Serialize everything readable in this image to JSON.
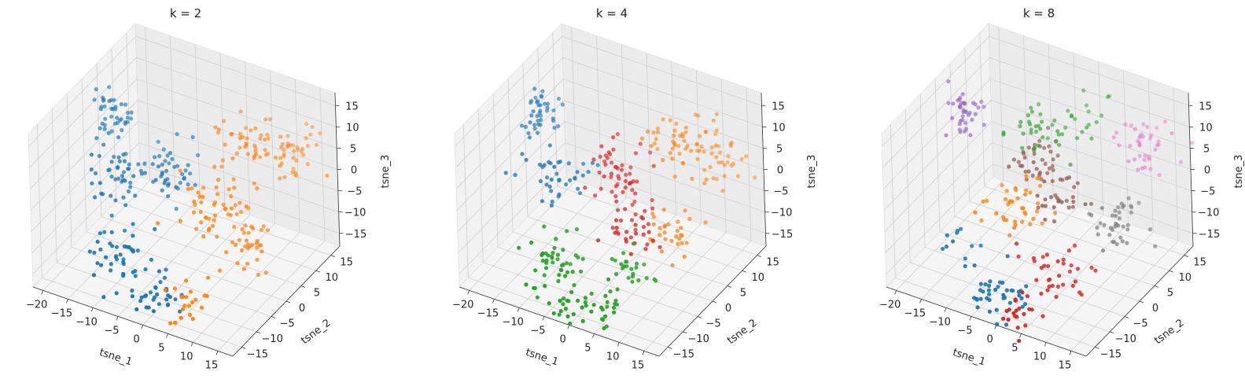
{
  "chart_data": [
    {
      "type": "scatter",
      "title": "k = 2",
      "xlabel": "tsne_1",
      "ylabel": "tsne_2",
      "zlabel": "tsne_3",
      "xticks": [
        "−20",
        "−15",
        "−10",
        "−5",
        "0",
        "5",
        "10",
        "15"
      ],
      "yticks": [
        "−15",
        "−10",
        "−5",
        "0",
        "5",
        "10",
        "15"
      ],
      "zticks": [
        "−15",
        "−10",
        "−5",
        "0",
        "5",
        "10",
        "15"
      ],
      "xlim": [
        -22,
        18
      ],
      "ylim": [
        -18,
        18
      ],
      "zlim": [
        -18,
        18
      ],
      "grid": true,
      "series": [
        {
          "color": "#1f77b4",
          "clusters": [
            {
              "c": [
                -19,
                5,
                8
              ],
              "s": [
                1.8,
                1.8,
                2.5
              ],
              "n": 40
            },
            {
              "c": [
                -14,
                -3,
                0
              ],
              "s": [
                2.5,
                2.5,
                3
              ],
              "n": 45
            },
            {
              "c": [
                -6,
                2,
                2
              ],
              "s": [
                3,
                3,
                3
              ],
              "n": 45
            },
            {
              "c": [
                -7,
                -12,
                -9
              ],
              "s": [
                3,
                2,
                2.5
              ],
              "n": 40
            },
            {
              "c": [
                0,
                -14,
                -14
              ],
              "s": [
                3,
                2,
                2
              ],
              "n": 35
            }
          ]
        },
        {
          "color": "#ff7f0e",
          "clusters": [
            {
              "c": [
                6,
                8,
                9
              ],
              "s": [
                3,
                2.5,
                2.5
              ],
              "n": 40
            },
            {
              "c": [
                12,
                12,
                6
              ],
              "s": [
                2.5,
                2.5,
                3
              ],
              "n": 40
            },
            {
              "c": [
                4,
                0,
                0
              ],
              "s": [
                3,
                3,
                3
              ],
              "n": 45
            },
            {
              "c": [
                10,
                0,
                -7
              ],
              "s": [
                2.5,
                2.5,
                2.5
              ],
              "n": 40
            },
            {
              "c": [
                5,
                -13,
                -14
              ],
              "s": [
                2,
                2,
                1.8
              ],
              "n": 20
            }
          ]
        }
      ]
    },
    {
      "type": "scatter",
      "title": "k = 4",
      "xlabel": "tsne_1",
      "ylabel": "tsne_2",
      "zlabel": "tsne_3",
      "xticks": [
        "−20",
        "−15",
        "−10",
        "−5",
        "0",
        "5",
        "10",
        "15"
      ],
      "yticks": [
        "−15",
        "−10",
        "−5",
        "0",
        "5",
        "10",
        "15"
      ],
      "zticks": [
        "−15",
        "−10",
        "−5",
        "0",
        "5",
        "10",
        "15"
      ],
      "xlim": [
        -22,
        18
      ],
      "ylim": [
        -18,
        18
      ],
      "zlim": [
        -18,
        18
      ],
      "grid": true,
      "series": [
        {
          "color": "#1f77b4",
          "clusters": [
            {
              "c": [
                -19,
                5,
                8
              ],
              "s": [
                1.8,
                1.8,
                2.5
              ],
              "n": 40
            },
            {
              "c": [
                -12,
                -2,
                1
              ],
              "s": [
                2.5,
                2.5,
                3
              ],
              "n": 40
            }
          ]
        },
        {
          "color": "#ff7f0e",
          "clusters": [
            {
              "c": [
                6,
                8,
                9
              ],
              "s": [
                3,
                2.5,
                2.5
              ],
              "n": 40
            },
            {
              "c": [
                12,
                12,
                6
              ],
              "s": [
                2.5,
                2.5,
                3
              ],
              "n": 40
            },
            {
              "c": [
                10,
                0,
                -5
              ],
              "s": [
                2.5,
                2.5,
                2.5
              ],
              "n": 30
            }
          ]
        },
        {
          "color": "#2ca02c",
          "clusters": [
            {
              "c": [
                -6,
                -12,
                -10
              ],
              "s": [
                3,
                2.5,
                2.5
              ],
              "n": 45
            },
            {
              "c": [
                2,
                -15,
                -15
              ],
              "s": [
                3,
                2,
                2
              ],
              "n": 40
            },
            {
              "c": [
                6,
                -8,
                -10
              ],
              "s": [
                2.5,
                2,
                2
              ],
              "n": 25
            }
          ]
        },
        {
          "color": "#d62728",
          "clusters": [
            {
              "c": [
                -2,
                2,
                2
              ],
              "s": [
                3,
                3,
                3
              ],
              "n": 55
            },
            {
              "c": [
                4,
                -4,
                -4
              ],
              "s": [
                2.5,
                2.5,
                2.5
              ],
              "n": 30
            }
          ]
        }
      ]
    },
    {
      "type": "scatter",
      "title": "k = 8",
      "xlabel": "tsne_1",
      "ylabel": "tsne_2",
      "zlabel": "tsne_3",
      "xticks": [
        "−20",
        "−15",
        "−10",
        "−5",
        "0",
        "5",
        "10",
        "15"
      ],
      "yticks": [
        "−15",
        "−10",
        "−5",
        "0",
        "5",
        "10",
        "15"
      ],
      "zticks": [
        "−15",
        "−10",
        "−5",
        "0",
        "5",
        "10",
        "15"
      ],
      "xlim": [
        -22,
        18
      ],
      "ylim": [
        -18,
        18
      ],
      "zlim": [
        -18,
        18
      ],
      "grid": true,
      "series": [
        {
          "color": "#9467bd",
          "clusters": [
            {
              "c": [
                -19,
                5,
                8
              ],
              "s": [
                1.8,
                1.8,
                2.5
              ],
              "n": 40
            }
          ]
        },
        {
          "color": "#2ca02c",
          "clusters": [
            {
              "c": [
                -5,
                6,
                9
              ],
              "s": [
                3,
                2.5,
                2.5
              ],
              "n": 35
            },
            {
              "c": [
                2,
                10,
                11
              ],
              "s": [
                2,
                2,
                2
              ],
              "n": 15
            }
          ]
        },
        {
          "color": "#8c564b",
          "clusters": [
            {
              "c": [
                -4,
                3,
                4
              ],
              "s": [
                2.5,
                2.5,
                2.5
              ],
              "n": 35
            },
            {
              "c": [
                2,
                0,
                0
              ],
              "s": [
                2.5,
                2.5,
                2.5
              ],
              "n": 30
            }
          ]
        },
        {
          "color": "#e377c2",
          "clusters": [
            {
              "c": [
                12,
                12,
                7
              ],
              "s": [
                2.5,
                2.5,
                3
              ],
              "n": 40
            }
          ]
        },
        {
          "color": "#7f7f7f",
          "clusters": [
            {
              "c": [
                12,
                2,
                -2
              ],
              "s": [
                2.5,
                2.5,
                2.5
              ],
              "n": 40
            }
          ]
        },
        {
          "color": "#ff7f0e",
          "clusters": [
            {
              "c": [
                -4,
                -2,
                -2
              ],
              "s": [
                3,
                2.5,
                2.5
              ],
              "n": 40
            }
          ]
        },
        {
          "color": "#d62728",
          "clusters": [
            {
              "c": [
                6,
                -8,
                -10
              ],
              "s": [
                3,
                2.5,
                2.5
              ],
              "n": 35
            },
            {
              "c": [
                2,
                -15,
                -16
              ],
              "s": [
                1.8,
                1.8,
                1.8
              ],
              "n": 20
            }
          ]
        },
        {
          "color": "#1f77b4",
          "clusters": [
            {
              "c": [
                -3,
                -14,
                -14
              ],
              "s": [
                3,
                2,
                2
              ],
              "n": 40
            },
            {
              "c": [
                -12,
                -10,
                -10
              ],
              "s": [
                2,
                2,
                2
              ],
              "n": 10
            }
          ]
        }
      ]
    }
  ]
}
